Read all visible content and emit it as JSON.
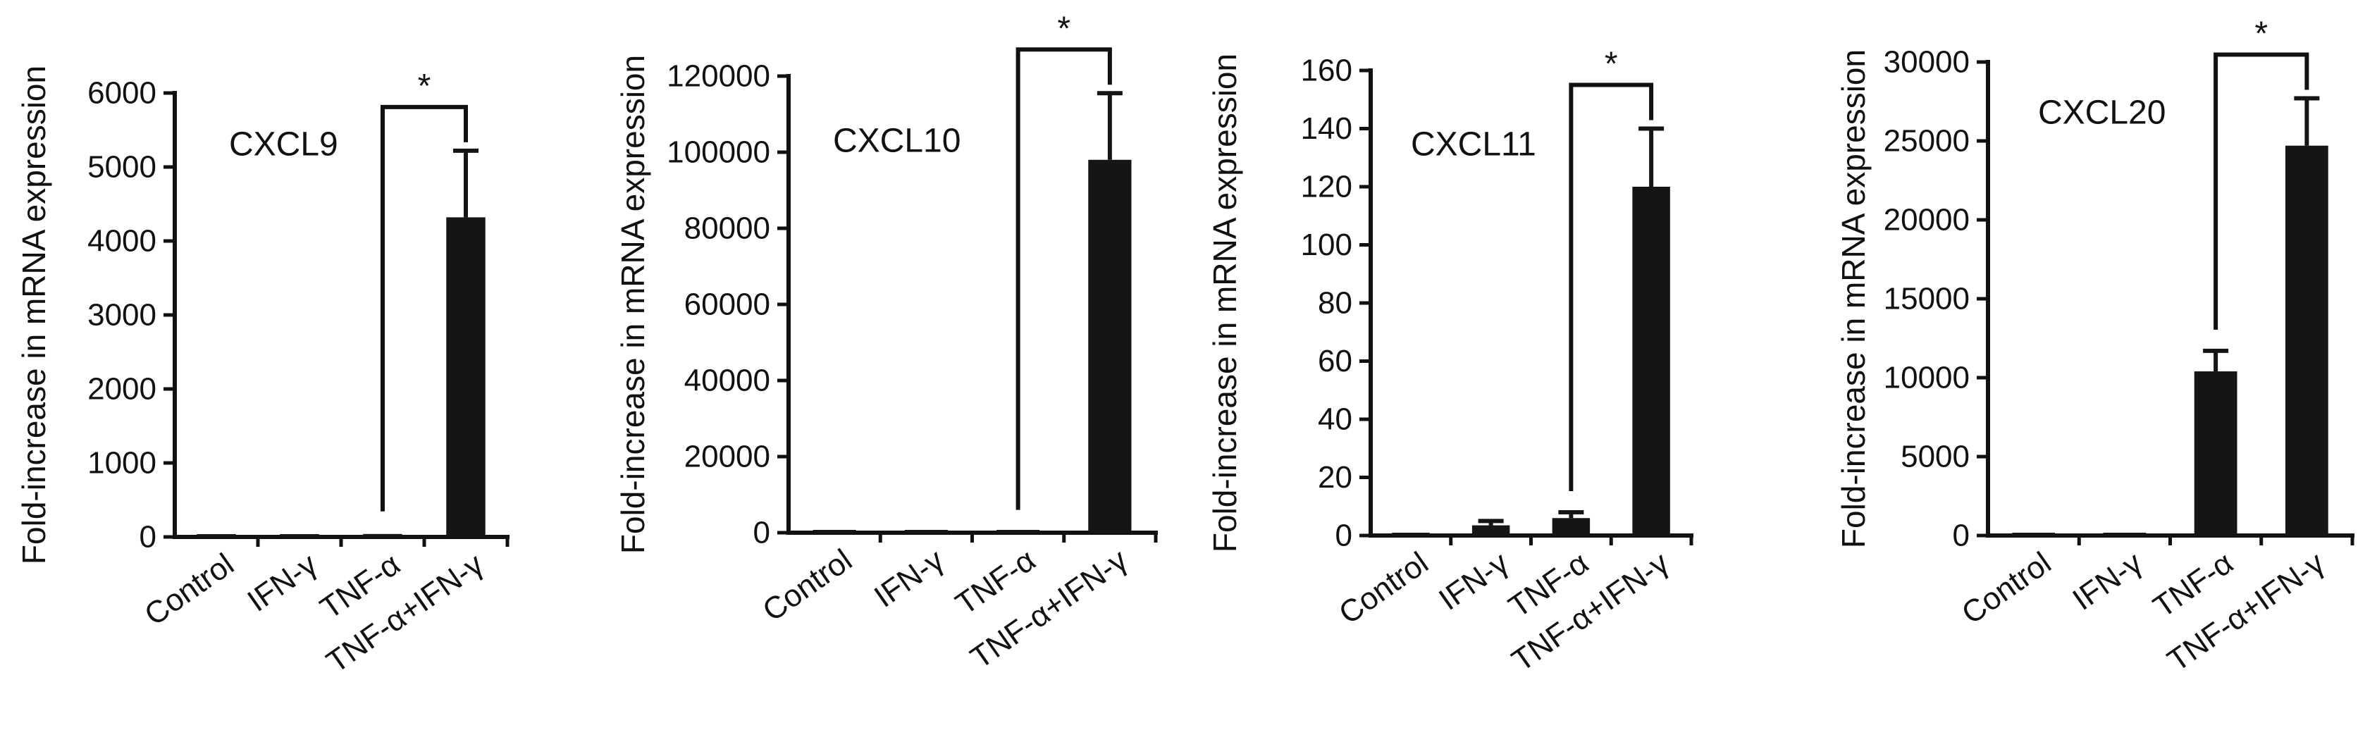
{
  "categories": [
    "Control",
    "IFN-γ",
    "TNF-α",
    "TNF-α+IFN-γ"
  ],
  "ylabel": "Fold-increase in mRNA expression",
  "chart_data": [
    {
      "type": "bar",
      "title": "CXCL9",
      "ylabel": "Fold-increase in mRNA expression",
      "categories": [
        "Control",
        "IFN-γ",
        "TNF-α",
        "TNF-α+IFN-γ"
      ],
      "values": [
        5,
        10,
        40,
        4320
      ],
      "errors": [
        3,
        5,
        20,
        900
      ],
      "ylim": [
        0,
        6000
      ],
      "yticks": [
        0,
        1000,
        2000,
        3000,
        4000,
        5000,
        6000
      ],
      "significance": {
        "from": 2,
        "to": 3,
        "label": "*"
      }
    },
    {
      "type": "bar",
      "title": "CXCL10",
      "ylabel": "Fold-increase in mRNA expression",
      "categories": [
        "Control",
        "IFN-γ",
        "TNF-α",
        "TNF-α+IFN-γ"
      ],
      "values": [
        50,
        100,
        300,
        98000
      ],
      "errors": [
        30,
        50,
        150,
        17500
      ],
      "ylim": [
        0,
        120000
      ],
      "yticks": [
        0,
        20000,
        40000,
        60000,
        80000,
        100000,
        120000
      ],
      "significance": {
        "from": 2,
        "to": 3,
        "label": "*"
      }
    },
    {
      "type": "bar",
      "title": "CXCL11",
      "ylabel": "Fold-increase in mRNA expression",
      "categories": [
        "Control",
        "IFN-γ",
        "TNF-α",
        "TNF-α+IFN-γ"
      ],
      "values": [
        0.5,
        3.5,
        6,
        120
      ],
      "errors": [
        0.3,
        1.5,
        2,
        20
      ],
      "ylim": [
        0,
        160
      ],
      "yticks": [
        0,
        20,
        40,
        60,
        80,
        100,
        120,
        140,
        160
      ],
      "significance": {
        "from": 2,
        "to": 3,
        "label": "*"
      }
    },
    {
      "type": "bar",
      "title": "CXCL20",
      "ylabel": "Fold-increase in mRNA expression",
      "categories": [
        "Control",
        "IFN-γ",
        "TNF-α",
        "TNF-α+IFN-γ"
      ],
      "values": [
        10,
        20,
        10400,
        24700
      ],
      "errors": [
        5,
        10,
        1300,
        3000
      ],
      "ylim": [
        0,
        30000
      ],
      "yticks": [
        0,
        5000,
        10000,
        15000,
        20000,
        25000,
        30000
      ],
      "significance": {
        "from": 2,
        "to": 3,
        "label": "*"
      }
    }
  ]
}
